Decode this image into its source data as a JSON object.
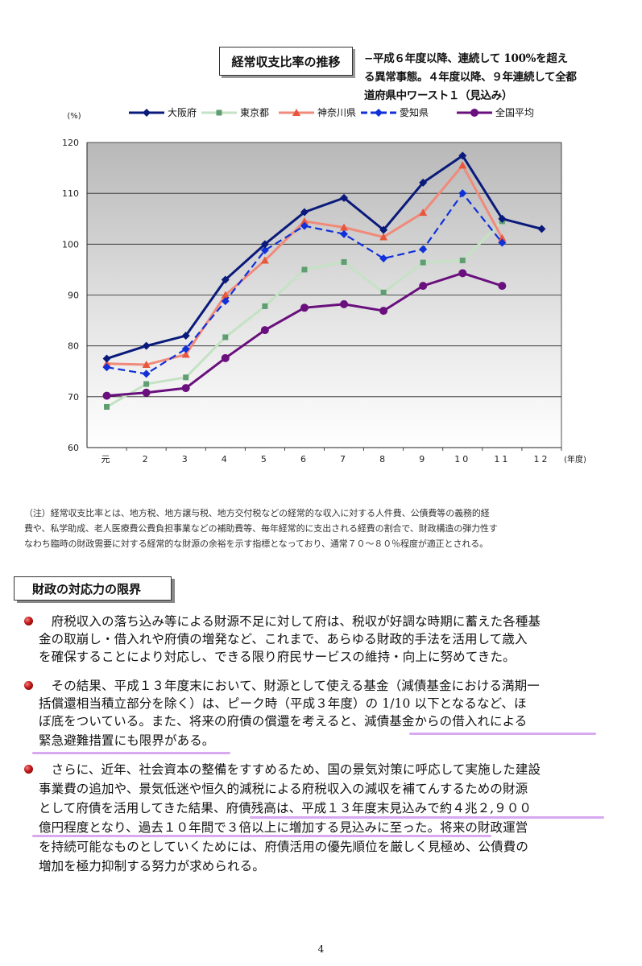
{
  "chart": {
    "title": "経常収支比率の推移",
    "subtitle_lines": [
      "−平成６年度以降、連続して 100%を超え",
      "る異常事態。４年度以降、９年連続して全都",
      "道府県中ワースト１（見込み）"
    ]
  },
  "chart_data": {
    "type": "line",
    "ylabel": "(%)",
    "xlabel": "(年度)",
    "categories": [
      "元",
      "2",
      "3",
      "4",
      "5",
      "6",
      "7",
      "8",
      "9",
      "10",
      "11",
      "12"
    ],
    "ylim": [
      60,
      120
    ],
    "yticks": [
      60,
      70,
      80,
      90,
      100,
      110,
      120
    ],
    "legend_position": "top",
    "grid": "horizontal",
    "series": [
      {
        "name": "大阪府",
        "color": "#0a1a7a",
        "marker": "diamond",
        "style": "solid",
        "values": [
          77.5,
          80.0,
          82.0,
          93.0,
          100.0,
          106.3,
          109.1,
          102.8,
          112.1,
          117.4,
          105.0,
          103.0
        ]
      },
      {
        "name": "東京都",
        "color": "#c4e2c4",
        "marker": "square",
        "style": "solid",
        "values": [
          68.0,
          72.5,
          73.8,
          81.7,
          87.8,
          95.0,
          96.5,
          90.5,
          96.4,
          96.8,
          104.5,
          null
        ]
      },
      {
        "name": "神奈川県",
        "color": "#f08a7a",
        "marker": "triangle",
        "style": "solid",
        "values": [
          76.5,
          76.3,
          78.3,
          90.0,
          96.8,
          104.5,
          103.3,
          101.4,
          106.2,
          115.5,
          101.2,
          null
        ]
      },
      {
        "name": "愛知県",
        "color": "#1030d8",
        "marker": "diamond",
        "style": "dashed",
        "values": [
          75.8,
          74.5,
          79.4,
          88.8,
          98.8,
          103.6,
          102.0,
          97.2,
          99.0,
          110.0,
          100.3,
          null
        ]
      },
      {
        "name": "全国平均",
        "color": "#6a0f7e",
        "marker": "circle",
        "style": "solid",
        "values": [
          70.2,
          70.8,
          71.7,
          77.6,
          83.1,
          87.5,
          88.2,
          86.9,
          91.8,
          94.3,
          91.8,
          null
        ]
      }
    ]
  },
  "note": {
    "lines": [
      "（注）経常収支比率とは、地方税、地方譲与税、地方交付税などの経常的な収入に対する人件費、公債費等の義務的経",
      "費や、私学助成、老人医療費公費負担事業などの補助費等、毎年経常的に支出される経費の割合で、財政構造の弾力性す",
      "なわち臨時の財政需要に対する経常的な財源の余裕を示す指標となっており、通常７０～８０％程度が適正とされる。"
    ]
  },
  "section": {
    "heading": "財政の対応力の限界",
    "paragraphs": [
      {
        "lines": [
          "　府税収入の落ち込み等による財源不足に対して府は、税収が好調な時期に蓄えた各種基",
          "金の取崩し・借入れや府債の増発など、これまで、あらゆる財政的手法を活用して歳入",
          "を確保することにより対応し、できる限り府民サービスの維持・向上に努めてきた。"
        ]
      },
      {
        "lines": [
          "　その結果、平成１３年度末において、財源として使える基金（減債基金における満期一",
          "括償還相当積立部分を除く）は、ピーク時（平成３年度）の 1/10 以下となるなど、ほ",
          "ぼ底をついている。また、将来の府債の償還を考えると、減債基金からの借入れによる",
          "緊急避難措置にも限界がある。"
        ]
      },
      {
        "lines": [
          "　さらに、近年、社会資本の整備をすすめるため、国の景気対策に呼応して実施した建設",
          "事業費の追加や、景気低迷や恒久的減税による府税収入の減収を補てんするための財源",
          "として府債を活用してきた結果、府債残高は、平成１３年度末見込みで約４兆２,９００",
          "億円程度となり、過去１０年間で３倍以上に増加する見込みに至った。将来の財政運営",
          "を持続可能なものとしていくためには、府債活用の優先順位を厳しく見極め、公債費の",
          "増加を極力抑制する努力が求められる。"
        ]
      }
    ]
  },
  "page_number": "4",
  "colors": {
    "highlight": "#d8a8f0",
    "bullet": "#c01818"
  }
}
